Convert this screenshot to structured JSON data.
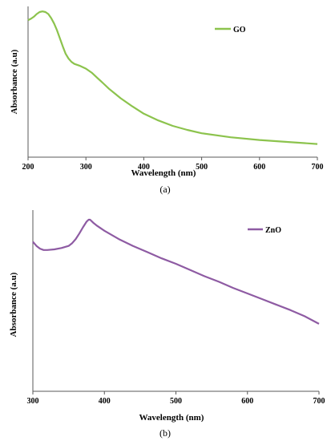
{
  "chart_data": [
    {
      "type": "line",
      "xlabel": "Wavelength (nm)",
      "ylabel": "Absorbance (a.u)",
      "xlim": [
        200,
        700
      ],
      "ylim": [
        0,
        1
      ],
      "xticks": [
        200,
        300,
        400,
        500,
        600,
        700
      ],
      "legend_position": "top-right",
      "caption": "(a)",
      "series": [
        {
          "name": "GO",
          "color": "#8cc34d",
          "x": [
            200,
            205,
            210,
            215,
            220,
            225,
            230,
            235,
            240,
            245,
            250,
            255,
            260,
            265,
            270,
            275,
            280,
            290,
            300,
            310,
            320,
            330,
            340,
            350,
            360,
            380,
            400,
            425,
            450,
            475,
            500,
            550,
            600,
            650,
            700
          ],
          "y": [
            0.94,
            0.95,
            0.965,
            0.985,
            1.0,
            1.005,
            1.0,
            0.985,
            0.955,
            0.915,
            0.865,
            0.805,
            0.745,
            0.69,
            0.655,
            0.63,
            0.615,
            0.6,
            0.58,
            0.55,
            0.51,
            0.47,
            0.43,
            0.395,
            0.36,
            0.3,
            0.245,
            0.195,
            0.155,
            0.125,
            0.1,
            0.07,
            0.05,
            0.035,
            0.02
          ]
        }
      ]
    },
    {
      "type": "line",
      "xlabel": "Wavelength (nm)",
      "ylabel": "Absorbance (a.u)",
      "xlim": [
        300,
        700
      ],
      "ylim": [
        0,
        1
      ],
      "xticks": [
        300,
        400,
        500,
        600,
        700
      ],
      "legend_position": "top-right",
      "caption": "(b)",
      "series": [
        {
          "name": "ZnO",
          "color": "#8e5ba3",
          "x": [
            300,
            305,
            310,
            315,
            320,
            330,
            340,
            350,
            355,
            360,
            365,
            370,
            375,
            378,
            380,
            382,
            385,
            390,
            400,
            420,
            440,
            460,
            480,
            500,
            520,
            540,
            560,
            580,
            600,
            620,
            640,
            660,
            680,
            700
          ],
          "y": [
            0.84,
            0.81,
            0.79,
            0.78,
            0.78,
            0.785,
            0.795,
            0.81,
            0.83,
            0.86,
            0.9,
            0.945,
            0.985,
            1.0,
            1.0,
            0.99,
            0.975,
            0.955,
            0.92,
            0.86,
            0.81,
            0.765,
            0.72,
            0.68,
            0.635,
            0.59,
            0.55,
            0.505,
            0.465,
            0.425,
            0.385,
            0.345,
            0.3,
            0.245
          ]
        }
      ]
    }
  ]
}
